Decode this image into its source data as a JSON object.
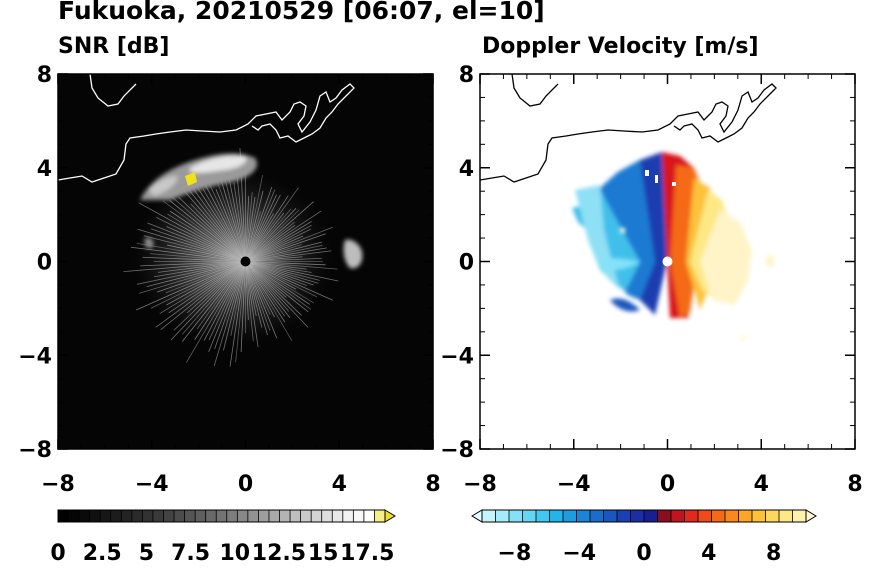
{
  "title": "Fukuoka, 20210529 [06:07, el=10]",
  "panels": [
    {
      "title": "SNR [dB]"
    },
    {
      "title": "Doppler Velocity [m/s]"
    }
  ],
  "chart_data": [
    {
      "type": "heatmap",
      "title": "SNR [dB]",
      "xlim": [
        -8,
        8
      ],
      "ylim": [
        -8,
        8
      ],
      "xticks": [
        "−8",
        "−4",
        "0",
        "4",
        "8"
      ],
      "yticks": [
        "8",
        "4",
        "0",
        "−4",
        "−8"
      ],
      "background": "#050505",
      "colorbar": {
        "ticks": [
          "0",
          "2.5",
          "5",
          "7.5",
          "10",
          "12.5",
          "15",
          "17.5"
        ],
        "range": [
          0,
          18.5
        ],
        "extend": "max",
        "colors": [
          "#000000",
          "#050505",
          "#0a0a0a",
          "#101010",
          "#161616",
          "#1c1c1c",
          "#232323",
          "#2a2a2a",
          "#323232",
          "#3a3a3a",
          "#434343",
          "#4c4c4c",
          "#555555",
          "#5f5f5f",
          "#696969",
          "#737373",
          "#7d7d7d",
          "#888888",
          "#939393",
          "#9e9e9e",
          "#a9a9a9",
          "#b4b4b4",
          "#bfbfbf",
          "#cacaca",
          "#d4d4d4",
          "#dedede",
          "#e8e8e8",
          "#f2f2f2",
          "#f8f8f8",
          "#ffffff",
          "#f5ef8a",
          "#f0e020"
        ]
      }
    },
    {
      "type": "heatmap",
      "title": "Doppler Velocity [m/s]",
      "xlim": [
        -8,
        8
      ],
      "ylim": [
        -8,
        8
      ],
      "xticks": [
        "−8",
        "−4",
        "0",
        "4",
        "8"
      ],
      "yticks": [
        "8",
        "4",
        "0",
        "−4",
        "−8"
      ],
      "background": "#ffffff",
      "colorbar": {
        "ticks": [
          "−8",
          "−4",
          "0",
          "4",
          "8"
        ],
        "range": [
          -10,
          10
        ],
        "extend": "both",
        "colors": [
          "#e4fbff",
          "#c4f4fd",
          "#a4ecfb",
          "#84e2f8",
          "#63d6f4",
          "#42c7ef",
          "#25b4e8",
          "#1d9ddf",
          "#1c85d5",
          "#1b6dcb",
          "#1a56c0",
          "#1a40b4",
          "#1a2ea5",
          "#191f8f",
          "#8a0f1e",
          "#c0141e",
          "#e02a1e",
          "#f04a1a",
          "#f46a18",
          "#f78a1a",
          "#fba624",
          "#fdc13a",
          "#fdd85c",
          "#fde884",
          "#fef2ac",
          "#fff8d0"
        ]
      }
    }
  ]
}
